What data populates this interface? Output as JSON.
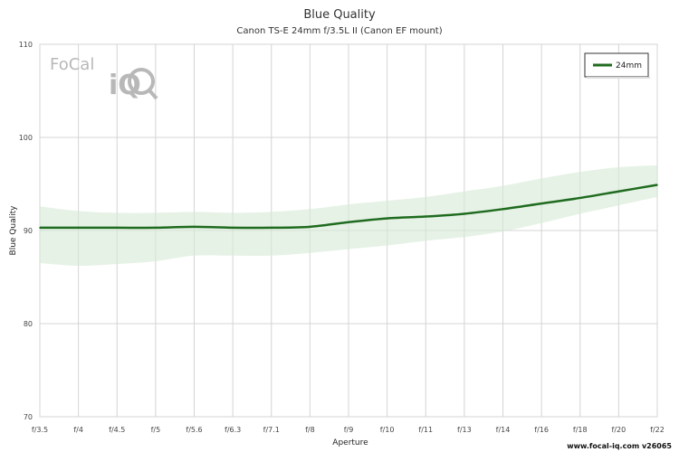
{
  "chart_data": {
    "type": "line",
    "title": "Blue Quality",
    "subtitle": "Canon TS-E 24mm f/3.5L II (Canon EF mount)",
    "xlabel": "Aperture",
    "ylabel": "Blue Quality",
    "categories": [
      "f/3.5",
      "f/4",
      "f/4.5",
      "f/5",
      "f/5.6",
      "f/6.3",
      "f/7.1",
      "f/8",
      "f/9",
      "f/10",
      "f/11",
      "f/13",
      "f/14",
      "f/16",
      "f/18",
      "f/20",
      "f/22"
    ],
    "ylim": [
      70,
      110
    ],
    "yticks": [
      70,
      80,
      90,
      100,
      110
    ],
    "grid": true,
    "legend_position": "top-right",
    "series": [
      {
        "name": "24mm",
        "color": "#1f6b1f",
        "band_color": "#d6ead6",
        "values": [
          90.3,
          90.3,
          90.3,
          90.3,
          90.4,
          90.3,
          90.3,
          90.4,
          90.9,
          91.3,
          91.5,
          91.8,
          92.3,
          92.9,
          93.5,
          94.2,
          94.9
        ],
        "band_upper": [
          92.6,
          92.1,
          91.9,
          91.9,
          92.0,
          91.9,
          92.0,
          92.3,
          92.8,
          93.2,
          93.6,
          94.2,
          94.8,
          95.6,
          96.3,
          96.8,
          97.0
        ],
        "band_lower": [
          86.5,
          86.2,
          86.4,
          86.7,
          87.3,
          87.3,
          87.3,
          87.6,
          88.0,
          88.4,
          88.9,
          89.3,
          89.9,
          90.8,
          91.8,
          92.7,
          93.6
        ]
      }
    ]
  },
  "watermark": "www.focal-iq.com  v26065",
  "logo": {
    "text_top": "FoCal",
    "text_bottom": "iQ"
  }
}
